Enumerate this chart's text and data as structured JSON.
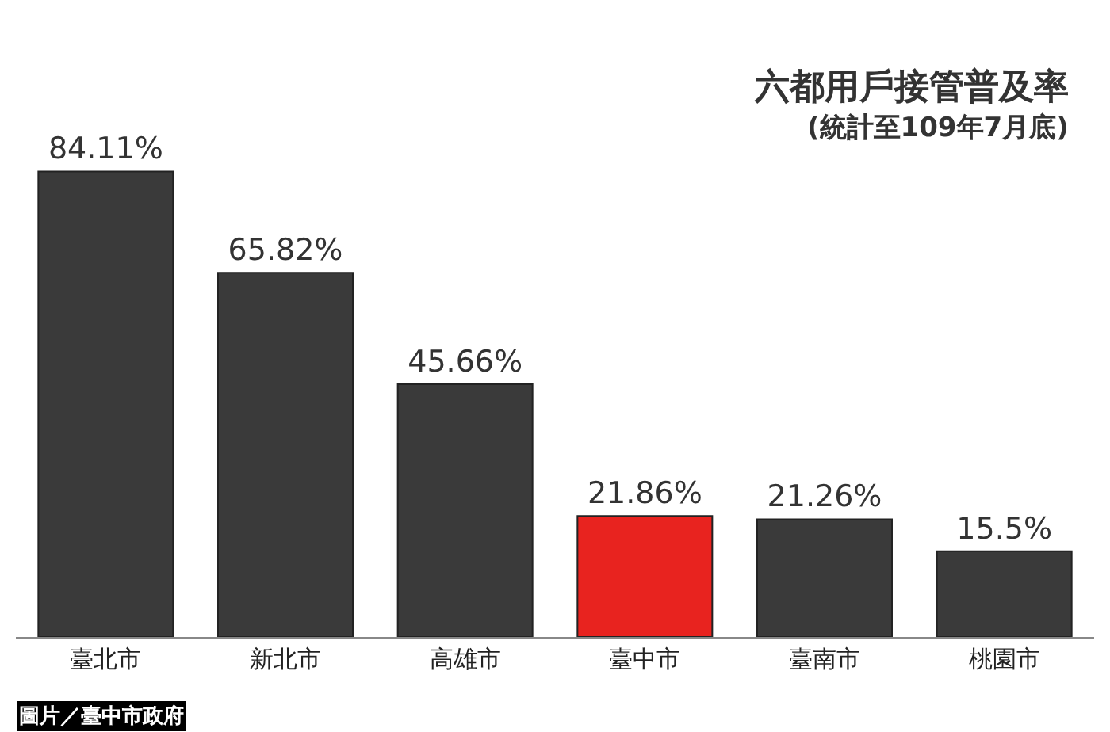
{
  "chart_data": {
    "type": "bar",
    "title": "六都用戶接管普及率",
    "subtitle": "(統計至109年7月底)",
    "categories": [
      "臺北市",
      "新北市",
      "高雄市",
      "臺中市",
      "臺南市",
      "桃園市"
    ],
    "values": [
      84.11,
      65.82,
      45.66,
      21.86,
      21.26,
      15.5
    ],
    "value_labels": [
      "84.11%",
      "65.82%",
      "45.66%",
      "21.86%",
      "21.26%",
      "15.5%"
    ],
    "colors": [
      "#3a3a3a",
      "#3a3a3a",
      "#3a3a3a",
      "#e8231f",
      "#3a3a3a",
      "#3a3a3a"
    ],
    "annotations": [
      "圖片／臺中市政府"
    ],
    "legend": false
  }
}
